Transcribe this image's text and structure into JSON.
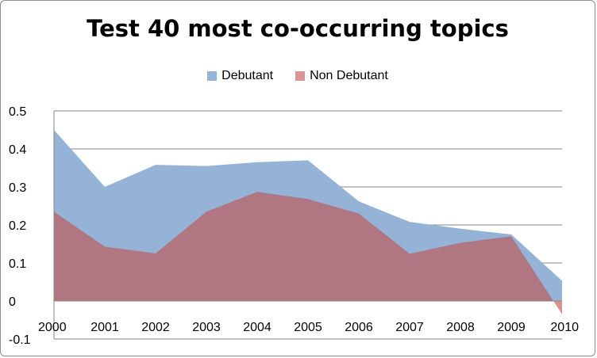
{
  "chart_data": {
    "type": "area",
    "title": "Test 40 most co-occurring topics",
    "xlabel": "",
    "ylabel": "",
    "categories": [
      "2000",
      "2001",
      "2002",
      "2003",
      "2004",
      "2005",
      "2006",
      "2007",
      "2008",
      "2009",
      "2010"
    ],
    "series": [
      {
        "name": "Debutant",
        "color": "#95b3d7",
        "values": [
          0.45,
          0.3,
          0.358,
          0.355,
          0.365,
          0.37,
          0.262,
          0.208,
          0.19,
          0.175,
          0.053
        ]
      },
      {
        "name": "Non Debutant",
        "color": "#c0504d",
        "values": [
          0.235,
          0.143,
          0.125,
          0.235,
          0.287,
          0.268,
          0.23,
          0.124,
          0.153,
          0.17,
          -0.035
        ]
      }
    ],
    "ylim": [
      -0.1,
      0.5
    ],
    "yticks": [
      "-0.1",
      "0",
      "0.1",
      "0.2",
      "0.3",
      "0.4",
      "0.5"
    ],
    "grid": true,
    "legend": "top"
  }
}
